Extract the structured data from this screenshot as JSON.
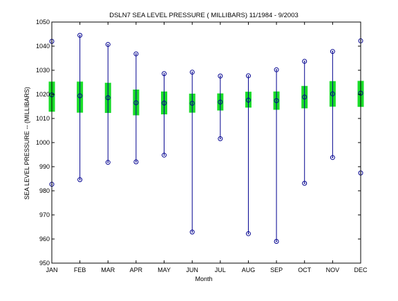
{
  "chart_data": {
    "type": "range",
    "title": "DSLN7  SEA LEVEL PRESSURE ( MILLIBARS) 11/1984 - 9/2003",
    "xlabel": "Month",
    "ylabel": "SEA LEVEL PRESSURE -- (MILLIBARS)",
    "ylim": [
      950,
      1050
    ],
    "yticks": [
      "950",
      "960",
      "970",
      "980",
      "990",
      "1000",
      "1010",
      "1020",
      "1030",
      "1040",
      "1050"
    ],
    "categories": [
      "JAN",
      "FEB",
      "MAR",
      "APR",
      "MAY",
      "JUN",
      "JUL",
      "AUG",
      "SEP",
      "OCT",
      "NOV",
      "DEC"
    ],
    "series": [
      {
        "values_max": [
          1042,
          1044.5,
          1040.7,
          1036.8,
          1028.6,
          1029.2,
          1027.6,
          1027.7,
          1030.2,
          1033.7,
          1037.8,
          1042.2
        ]
      },
      {
        "values_mean": [
          1019.8,
          1019.4,
          1018.6,
          1016.5,
          1016.4,
          1016.3,
          1016.8,
          1017.6,
          1017.4,
          1018.9,
          1020.2,
          1020.5
        ]
      },
      {
        "values_min": [
          982.7,
          984.6,
          991.8,
          992,
          994.8,
          962.9,
          1001.6,
          962.2,
          959,
          983.1,
          993.8,
          987.4
        ]
      },
      {
        "std_upper": [
          1025.3,
          1025.3,
          1024.8,
          1022,
          1021.2,
          1020.3,
          1020.4,
          1021.1,
          1021.2,
          1023.5,
          1025.5,
          1025.6
        ]
      },
      {
        "std_lower": [
          1012.8,
          1012.4,
          1012.3,
          1011.3,
          1011.7,
          1012.4,
          1013.3,
          1014.5,
          1013.6,
          1014.2,
          1014.9,
          1014.8
        ]
      }
    ],
    "grid": false,
    "colors": {
      "range_line": "#00008f",
      "std_bar": "#19dd28",
      "marker": "#00008f",
      "axes": "#000000"
    }
  }
}
